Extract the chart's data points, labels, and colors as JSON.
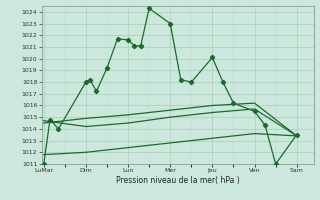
{
  "background_color": "#cce8dc",
  "grid_color_major": "#aaccbb",
  "grid_color_minor": "#bbddd0",
  "line_color": "#1a6b2a",
  "xlabel": "Pression niveau de la mer( hPa )",
  "ylim": [
    1011,
    1024.5
  ],
  "ytick_min": 1011,
  "ytick_max": 1024,
  "xtick_labels": [
    "LuMar",
    "Dim",
    "Lun",
    "Mer",
    "Jeu",
    "Ven",
    "Sam"
  ],
  "xtick_positions": [
    0,
    2,
    4,
    6,
    8,
    10,
    12
  ],
  "xlim": [
    -0.1,
    12.8
  ],
  "series1_x": [
    0,
    0.3,
    0.7,
    2.0,
    2.2,
    2.5,
    3.0,
    3.5,
    4.0,
    4.3,
    4.6,
    5.0,
    6.0,
    6.5,
    7.0,
    8.0,
    8.5,
    9.0,
    10.0,
    10.5,
    11.0,
    12.0
  ],
  "series1_y": [
    1011.0,
    1014.8,
    1014.0,
    1018.0,
    1018.2,
    1017.2,
    1019.2,
    1021.7,
    1021.6,
    1021.1,
    1021.1,
    1024.3,
    1023.0,
    1018.2,
    1018.0,
    1020.1,
    1018.0,
    1016.2,
    1015.5,
    1014.3,
    1011.0,
    1013.5
  ],
  "series2_x": [
    0,
    2,
    4,
    6,
    8,
    10,
    12
  ],
  "series2_y": [
    1014.7,
    1014.2,
    1014.5,
    1015.0,
    1015.4,
    1015.7,
    1013.4
  ],
  "series3_x": [
    0,
    2,
    4,
    6,
    8,
    10,
    12
  ],
  "series3_y": [
    1011.8,
    1012.0,
    1012.4,
    1012.8,
    1013.2,
    1013.6,
    1013.4
  ],
  "series4_x": [
    0,
    2,
    4,
    6,
    8,
    10,
    12
  ],
  "series4_y": [
    1014.5,
    1014.9,
    1015.2,
    1015.6,
    1016.0,
    1016.2,
    1013.4
  ]
}
